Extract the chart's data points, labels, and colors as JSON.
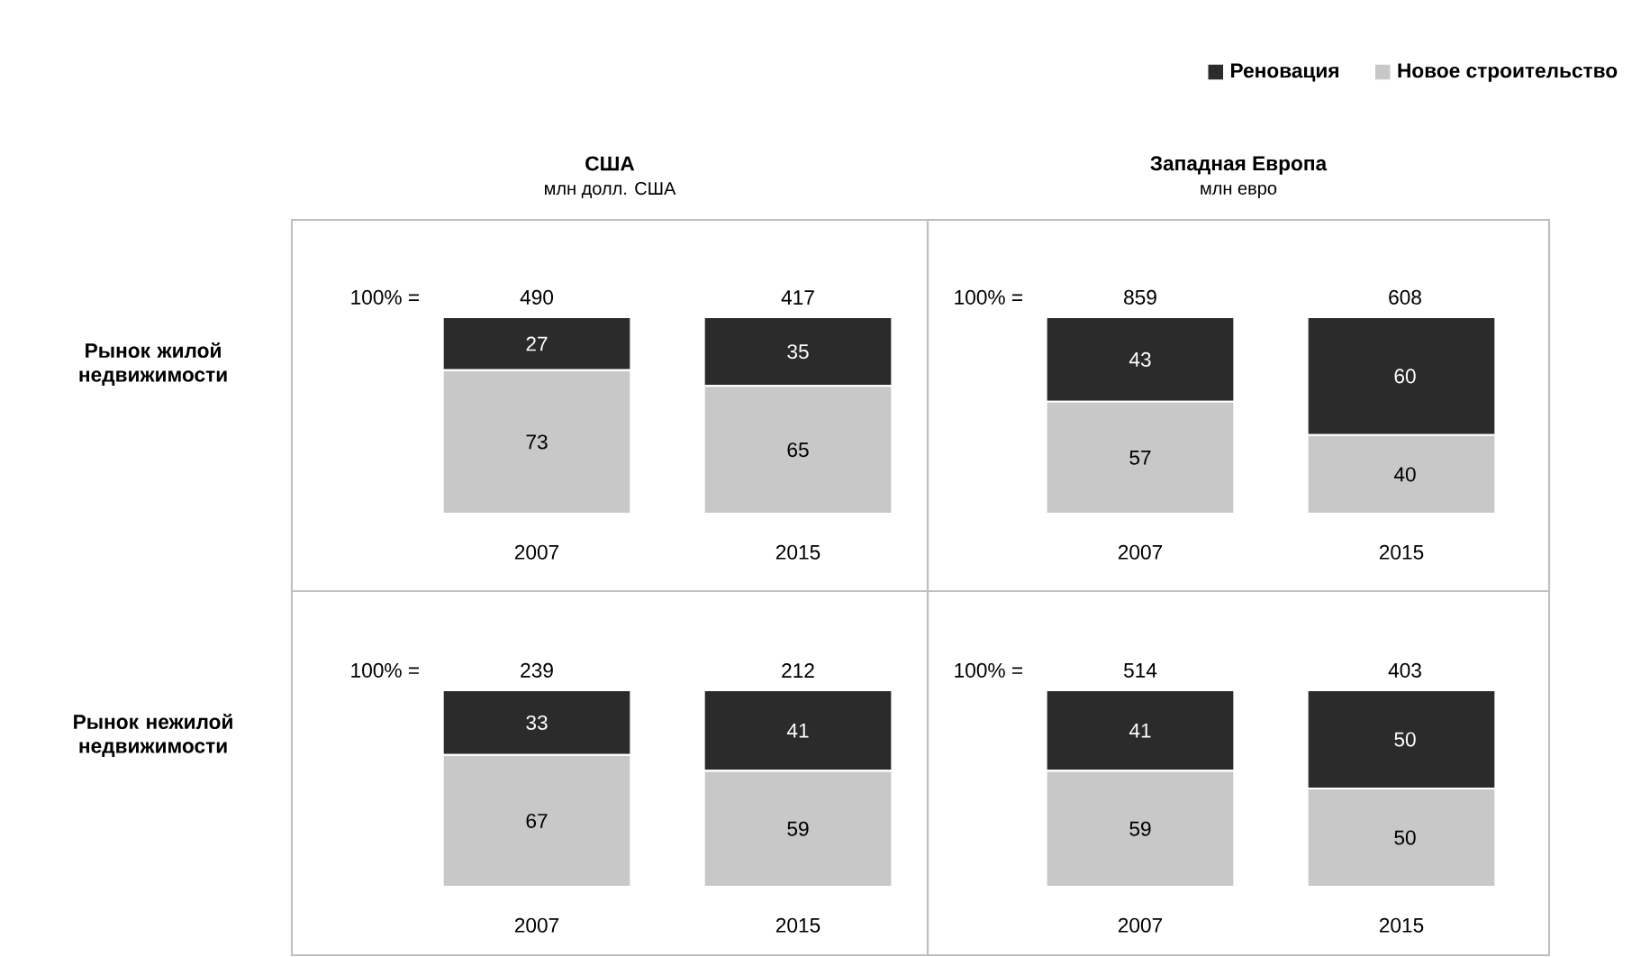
{
  "chart_data": [
    {
      "type": "bar",
      "stacked": true,
      "title": "США",
      "subtitle": "млн долл. США",
      "ylabel": "Рынок жилой недвижимости",
      "categories": [
        "2007",
        "2015"
      ],
      "tick_labels": "x",
      "data_labels": true,
      "annotations": [
        "100% =",
        "490",
        "417"
      ],
      "series": [
        {
          "color": "#c8c8c8",
          "values": [
            73,
            65
          ]
        },
        {
          "color": "#2b2b2b",
          "values": [
            27,
            35
          ]
        }
      ]
    },
    {
      "type": "bar",
      "stacked": true,
      "title": "Западная Европа",
      "subtitle": "млн евро",
      "categories": [
        "2007",
        "2015"
      ],
      "tick_labels": "x",
      "data_labels": true,
      "annotations": [
        "100% =",
        "859",
        "608"
      ],
      "legend": "top right",
      "series": [
        {
          "name": "Новое строительство",
          "color": "#c8c8c8",
          "values": [
            57,
            40
          ]
        },
        {
          "name": "Реновация",
          "color": "#2b2b2b",
          "values": [
            43,
            60
          ]
        }
      ]
    },
    {
      "type": "bar",
      "stacked": true,
      "ylabel": "Рынок нежилой недвижимости",
      "categories": [
        "2007",
        "2015"
      ],
      "tick_labels": "x",
      "data_labels": true,
      "annotations": [
        "100% =",
        "239",
        "212"
      ],
      "series": [
        {
          "color": "#c8c8c8",
          "values": [
            67,
            59
          ]
        },
        {
          "color": "#2b2b2b",
          "values": [
            33,
            41
          ]
        }
      ]
    },
    {
      "type": "bar",
      "stacked": true,
      "categories": [
        "2007",
        "2015"
      ],
      "tick_labels": "x",
      "data_labels": true,
      "annotations": [
        "100% =",
        "514",
        "403"
      ],
      "series": [
        {
          "color": "#c8c8c8",
          "values": [
            59,
            50
          ]
        },
        {
          "color": "#2b2b2b",
          "values": [
            41,
            50
          ]
        }
      ]
    }
  ]
}
